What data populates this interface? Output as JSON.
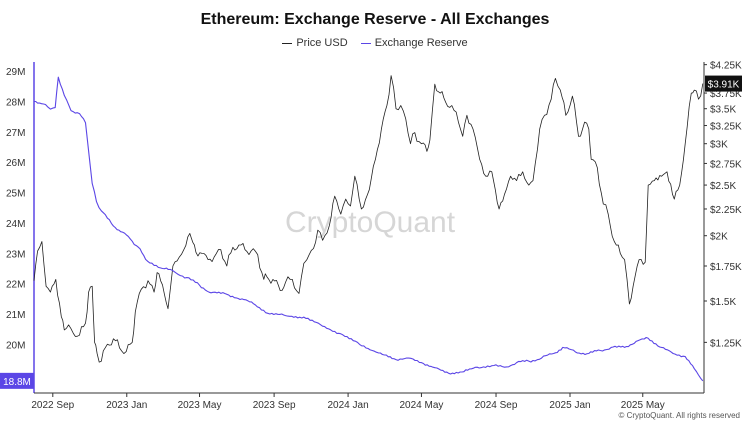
{
  "chart_data": {
    "type": "line",
    "title": "Ethereum: Exchange Reserve - All Exchanges",
    "xlabel": "",
    "x_ticks": [
      "2022 Sep",
      "2023 Jan",
      "2023 May",
      "2023 Sep",
      "2024 Jan",
      "2024 May",
      "2024 Sep",
      "2025 Jan",
      "2025 May"
    ],
    "y_left": {
      "ylabel": "",
      "ylim": [
        18.4,
        29.3
      ],
      "ticks": [
        "29M",
        "28M",
        "27M",
        "26M",
        "25M",
        "24M",
        "23M",
        "22M",
        "21M",
        "20M"
      ],
      "tick_values": [
        29,
        28,
        27,
        26,
        25,
        24,
        23,
        22,
        21,
        20
      ]
    },
    "y_right": {
      "ylabel": "",
      "scale": "log",
      "ylim": [
        1000,
        4300
      ],
      "ticks": [
        "$4.25K",
        "$3.75K",
        "$3.5K",
        "$3.25K",
        "$3K",
        "$2.75K",
        "$2.5K",
        "$2.25K",
        "$2K",
        "$1.75K",
        "$1.5K",
        "$1.25K"
      ],
      "tick_values": [
        4250,
        3750,
        3500,
        3250,
        3000,
        2750,
        2500,
        2250,
        2000,
        1750,
        1500,
        1250
      ]
    },
    "grid": false,
    "legend_position": "top",
    "series": [
      {
        "name": "Price USD",
        "axis": "right",
        "color": "#222222",
        "dates": [
          "2022-08-01",
          "2022-08-07",
          "2022-08-14",
          "2022-08-21",
          "2022-08-28",
          "2022-09-06",
          "2022-09-15",
          "2022-09-20",
          "2022-09-27",
          "2022-10-05",
          "2022-10-15",
          "2022-10-25",
          "2022-10-30",
          "2022-11-05",
          "2022-11-09",
          "2022-11-13",
          "2022-11-20",
          "2022-11-30",
          "2022-12-10",
          "2022-12-20",
          "2022-12-31",
          "2023-01-10",
          "2023-01-15",
          "2023-01-25",
          "2023-02-05",
          "2023-02-15",
          "2023-02-20",
          "2023-03-01",
          "2023-03-10",
          "2023-03-18",
          "2023-03-25",
          "2023-04-05",
          "2023-04-15",
          "2023-04-20",
          "2023-04-25",
          "2023-05-05",
          "2023-05-15",
          "2023-05-25",
          "2023-06-05",
          "2023-06-15",
          "2023-06-25",
          "2023-07-05",
          "2023-07-15",
          "2023-07-25",
          "2023-08-05",
          "2023-08-15",
          "2023-08-20",
          "2023-08-30",
          "2023-09-11",
          "2023-09-20",
          "2023-10-01",
          "2023-10-12",
          "2023-10-20",
          "2023-10-25",
          "2023-11-05",
          "2023-11-12",
          "2023-11-20",
          "2023-12-01",
          "2023-12-10",
          "2023-12-20",
          "2023-12-28",
          "2024-01-05",
          "2024-01-12",
          "2024-01-23",
          "2024-02-05",
          "2024-02-15",
          "2024-02-25",
          "2024-03-05",
          "2024-03-12",
          "2024-03-20",
          "2024-03-28",
          "2024-04-05",
          "2024-04-13",
          "2024-04-20",
          "2024-05-01",
          "2024-05-10",
          "2024-05-15",
          "2024-05-23",
          "2024-06-01",
          "2024-06-10",
          "2024-06-20",
          "2024-07-01",
          "2024-07-08",
          "2024-07-15",
          "2024-07-25",
          "2024-08-05",
          "2024-08-15",
          "2024-08-25",
          "2024-09-06",
          "2024-09-15",
          "2024-09-25",
          "2024-10-05",
          "2024-10-15",
          "2024-10-25",
          "2024-11-01",
          "2024-11-12",
          "2024-11-20",
          "2024-12-01",
          "2024-12-08",
          "2024-12-16",
          "2024-12-25",
          "2025-01-05",
          "2025-01-15",
          "2025-01-25",
          "2025-02-01",
          "2025-02-05",
          "2025-02-15",
          "2025-02-25",
          "2025-03-05",
          "2025-03-15",
          "2025-03-25",
          "2025-04-01",
          "2025-04-09",
          "2025-04-15",
          "2025-04-25",
          "2025-05-05",
          "2025-05-10",
          "2025-05-20",
          "2025-06-01",
          "2025-06-10",
          "2025-06-22",
          "2025-07-01",
          "2025-07-10",
          "2025-07-20",
          "2025-07-25",
          "2025-08-01",
          "2025-08-08"
        ],
        "values": [
          1640,
          1870,
          1950,
          1600,
          1560,
          1650,
          1400,
          1320,
          1350,
          1300,
          1290,
          1360,
          1560,
          1600,
          1250,
          1190,
          1150,
          1240,
          1270,
          1220,
          1200,
          1250,
          1430,
          1580,
          1640,
          1560,
          1700,
          1610,
          1450,
          1750,
          1790,
          1880,
          2020,
          1940,
          1860,
          1850,
          1800,
          1820,
          1880,
          1750,
          1900,
          1920,
          1880,
          1870,
          1840,
          1650,
          1670,
          1650,
          1570,
          1630,
          1650,
          1550,
          1770,
          1800,
          1890,
          2050,
          1960,
          2090,
          2380,
          2200,
          2350,
          2280,
          2600,
          2250,
          2450,
          2800,
          3200,
          3550,
          4050,
          3500,
          3550,
          3350,
          3000,
          3150,
          3000,
          2900,
          3050,
          3900,
          3750,
          3600,
          3550,
          3300,
          3100,
          3400,
          3200,
          2800,
          2600,
          2650,
          2250,
          2400,
          2600,
          2550,
          2650,
          2500,
          2550,
          3200,
          3400,
          3650,
          4000,
          3800,
          3400,
          3700,
          3100,
          3300,
          3200,
          2800,
          2700,
          2300,
          2200,
          1950,
          1850,
          1800,
          1480,
          1600,
          1800,
          1780,
          2500,
          2550,
          2600,
          2650,
          2350,
          2500,
          3000,
          3750,
          3800,
          3650,
          3910
        ]
      },
      {
        "name": "Exchange Reserve",
        "axis": "left",
        "color": "#5b46e6",
        "dates": [
          "2022-08-01",
          "2022-08-10",
          "2022-08-20",
          "2022-08-28",
          "2022-09-05",
          "2022-09-10",
          "2022-09-20",
          "2022-10-01",
          "2022-10-15",
          "2022-10-25",
          "2022-11-05",
          "2022-11-12",
          "2022-11-20",
          "2022-12-10",
          "2022-12-25",
          "2023-01-10",
          "2023-01-20",
          "2023-02-01",
          "2023-03-01",
          "2023-03-20",
          "2023-04-10",
          "2023-05-01",
          "2023-05-20",
          "2023-06-15",
          "2023-07-10",
          "2023-08-01",
          "2023-08-25",
          "2023-09-20",
          "2023-10-20",
          "2023-11-20",
          "2023-12-20",
          "2024-01-20",
          "2024-02-10",
          "2024-03-01",
          "2024-03-20",
          "2024-04-10",
          "2024-05-01",
          "2024-05-20",
          "2024-06-15",
          "2024-07-10",
          "2024-08-01",
          "2024-08-25",
          "2024-09-15",
          "2024-10-05",
          "2024-10-25",
          "2024-11-15",
          "2024-12-05",
          "2024-12-20",
          "2025-01-10",
          "2025-02-01",
          "2025-02-20",
          "2025-03-10",
          "2025-04-01",
          "2025-04-20",
          "2025-05-10",
          "2025-06-01",
          "2025-06-20",
          "2025-07-10",
          "2025-07-25",
          "2025-08-08"
        ],
        "values": [
          28.0,
          27.95,
          27.9,
          27.75,
          27.8,
          28.8,
          28.2,
          27.7,
          27.6,
          27.3,
          25.3,
          24.7,
          24.4,
          23.9,
          23.7,
          23.4,
          23.2,
          22.8,
          22.5,
          22.4,
          22.2,
          21.95,
          21.7,
          21.65,
          21.5,
          21.3,
          21.0,
          20.95,
          20.9,
          20.6,
          20.35,
          20.0,
          19.8,
          19.65,
          19.5,
          19.55,
          19.4,
          19.25,
          19.05,
          19.1,
          19.25,
          19.3,
          19.25,
          19.4,
          19.45,
          19.55,
          19.7,
          19.9,
          19.75,
          19.7,
          19.8,
          19.9,
          19.9,
          20.1,
          20.2,
          19.9,
          19.7,
          19.6,
          19.2,
          18.8
        ]
      }
    ],
    "annotations": {
      "last_price_label": "$3.91K",
      "last_reserve_label": "18.8M",
      "watermark": "CryptoQuant"
    }
  },
  "legend": [
    {
      "label": "Price USD",
      "color": "#222222"
    },
    {
      "label": "Exchange Reserve",
      "color": "#5b46e6"
    }
  ],
  "copyright": "© CryptoQuant. All rights reserved"
}
